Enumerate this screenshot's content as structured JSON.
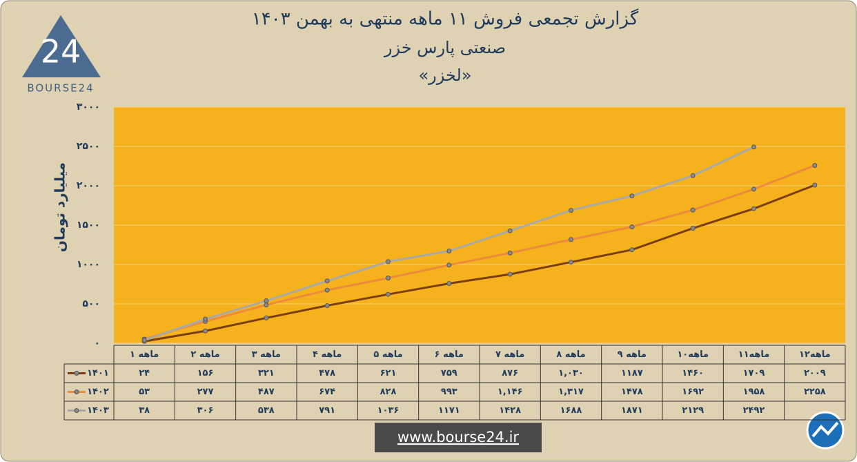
{
  "logo": {
    "number": "24",
    "text": "BOURSE24"
  },
  "website": "www.bourse24.ir",
  "chart_data": {
    "type": "line",
    "title": "گزارش تجمعی فروش ۱۱ ماهه منتهی به بهمن ۱۴۰۳",
    "subtitle": "صنعتی پارس خزر",
    "subtitle2": "«لخزر»",
    "y_label": "میلیارد تومان",
    "categories": [
      "۱ ماهه",
      "۲ ماهه",
      "۳ ماهه",
      "۴ ماهه",
      "۵ ماهه",
      "۶ ماهه",
      "۷ ماهه",
      "۸ ماهه",
      "۹ ماهه",
      "۱۰ماهه",
      "۱۱ماهه",
      "۱۲ماهه"
    ],
    "ylim": [
      0,
      3000
    ],
    "yticks": [
      {
        "value": 0,
        "label": "۰"
      },
      {
        "value": 500,
        "label": "۵۰۰"
      },
      {
        "value": 1000,
        "label": "۱۰۰۰"
      },
      {
        "value": 1500,
        "label": "۱۵۰۰"
      },
      {
        "value": 2000,
        "label": "۲۰۰۰"
      },
      {
        "value": 2500,
        "label": "۲۵۰۰"
      },
      {
        "value": 3000,
        "label": "۳۰۰۰"
      }
    ],
    "grid": true,
    "series": [
      {
        "name": "۱۴۰۱",
        "color": "#7a3e12",
        "values": [
          24,
          156,
          321,
          478,
          621,
          759,
          876,
          1030,
          1187,
          1460,
          1709,
          2009
        ],
        "value_labels": [
          "۲۴",
          "۱۵۶",
          "۳۲۱",
          "۴۷۸",
          "۶۲۱",
          "۷۵۹",
          "۸۷۶",
          "۱,۰۳۰",
          "۱۱۸۷",
          "۱۴۶۰",
          "۱۷۰۹",
          "۲۰۰۹"
        ]
      },
      {
        "name": "۱۴۰۲",
        "color": "#ee8a3c",
        "values": [
          53,
          277,
          487,
          674,
          828,
          993,
          1146,
          1317,
          1478,
          1692,
          1958,
          2258
        ],
        "value_labels": [
          "۵۳",
          "۲۷۷",
          "۴۸۷",
          "۶۷۴",
          "۸۲۸",
          "۹۹۳",
          "۱,۱۴۶",
          "۱,۳۱۷",
          "۱۴۷۸",
          "۱۶۹۲",
          "۱۹۵۸",
          "۲۲۵۸"
        ]
      },
      {
        "name": "۱۴۰۳",
        "color": "#a9a9a9",
        "values": [
          38,
          306,
          538,
          791,
          1036,
          1171,
          1428,
          1688,
          1871,
          2129,
          2492,
          null
        ],
        "value_labels": [
          "۳۸",
          "۳۰۶",
          "۵۳۸",
          "۷۹۱",
          "۱۰۳۶",
          "۱۱۷۱",
          "۱۴۲۸",
          "۱۶۸۸",
          "۱۸۷۱",
          "۲۱۲۹",
          "۲۴۹۲",
          null
        ]
      }
    ]
  }
}
